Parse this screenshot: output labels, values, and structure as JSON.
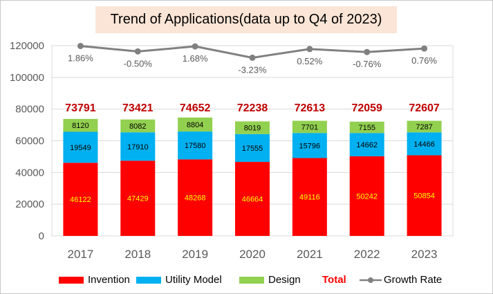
{
  "chart_data": {
    "type": "bar",
    "title": "Trend of Applications(data up to Q4 of 2023)",
    "categories": [
      "2017",
      "2018",
      "2019",
      "2020",
      "2021",
      "2022",
      "2023"
    ],
    "series": [
      {
        "name": "Invention",
        "values": [
          46122,
          47429,
          48268,
          46664,
          49116,
          50242,
          50854
        ],
        "color": "#ff0000",
        "label_color": "#ffff00"
      },
      {
        "name": "Utility Model",
        "values": [
          19549,
          17910,
          17580,
          17555,
          15796,
          14662,
          14466
        ],
        "color": "#00b0f0",
        "label_color": "#000000"
      },
      {
        "name": "Design",
        "values": [
          8120,
          8082,
          8804,
          8019,
          7701,
          7155,
          7287
        ],
        "color": "#92d050",
        "label_color": "#000000"
      }
    ],
    "totals": {
      "name": "Total",
      "values": [
        73791,
        73421,
        74652,
        72238,
        72613,
        72059,
        72607
      ],
      "color": "#c00000"
    },
    "growth_rate": {
      "name": "Growth Rate",
      "labels": [
        "1.86%",
        "-0.50%",
        "1.68%",
        "-3.23%",
        "0.52%",
        "-0.76%",
        "0.76%"
      ],
      "color": "#808080"
    },
    "y_ticks": [
      "0",
      "20000",
      "40000",
      "60000",
      "80000",
      "100000",
      "120000"
    ],
    "ylim": [
      0,
      120000
    ],
    "grid": true,
    "legend_position": "bottom"
  }
}
